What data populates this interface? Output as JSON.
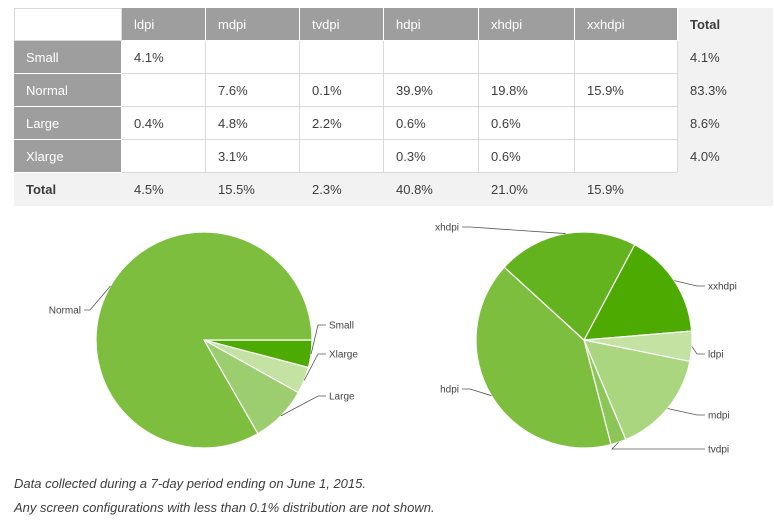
{
  "table": {
    "columns": [
      "ldpi",
      "mdpi",
      "tvdpi",
      "hdpi",
      "xhdpi",
      "xxhdpi"
    ],
    "total_label": "Total",
    "rows": [
      {
        "label": "Small",
        "cells": [
          "4.1%",
          "",
          "",
          "",
          "",
          ""
        ],
        "total": "4.1%"
      },
      {
        "label": "Normal",
        "cells": [
          "",
          "7.6%",
          "0.1%",
          "39.9%",
          "19.8%",
          "15.9%"
        ],
        "total": "83.3%"
      },
      {
        "label": "Large",
        "cells": [
          "0.4%",
          "4.8%",
          "2.2%",
          "0.6%",
          "0.6%",
          ""
        ],
        "total": "8.6%"
      },
      {
        "label": "Xlarge",
        "cells": [
          "",
          "3.1%",
          "",
          "0.3%",
          "0.6%",
          ""
        ],
        "total": "4.0%"
      }
    ],
    "totals_row": {
      "label": "Total",
      "cells": [
        "4.5%",
        "15.5%",
        "2.3%",
        "40.8%",
        "21.0%",
        "15.9%"
      ]
    }
  },
  "chart_data": [
    {
      "type": "pie",
      "slices": [
        {
          "label": "Small",
          "value": 4.1,
          "color": "#4caa00"
        },
        {
          "label": "Xlarge",
          "value": 4.0,
          "color": "#c4e2a1"
        },
        {
          "label": "Large",
          "value": 8.6,
          "color": "#9cce6f"
        },
        {
          "label": "Normal",
          "value": 83.3,
          "color": "#7dbe3e"
        }
      ]
    },
    {
      "type": "pie",
      "slices": [
        {
          "label": "xxhdpi",
          "value": 15.9,
          "color": "#4caa00"
        },
        {
          "label": "ldpi",
          "value": 4.5,
          "color": "#c4e2a1"
        },
        {
          "label": "mdpi",
          "value": 15.5,
          "color": "#aad67f"
        },
        {
          "label": "tvdpi",
          "value": 2.3,
          "color": "#8cc659"
        },
        {
          "label": "hdpi",
          "value": 40.8,
          "color": "#7dbe3e"
        },
        {
          "label": "xhdpi",
          "value": 21.0,
          "color": "#63b31e"
        }
      ]
    }
  ],
  "notes": [
    "Data collected during a 7-day period ending on June 1, 2015.",
    "Any screen configurations with less than 0.1% distribution are not shown."
  ]
}
